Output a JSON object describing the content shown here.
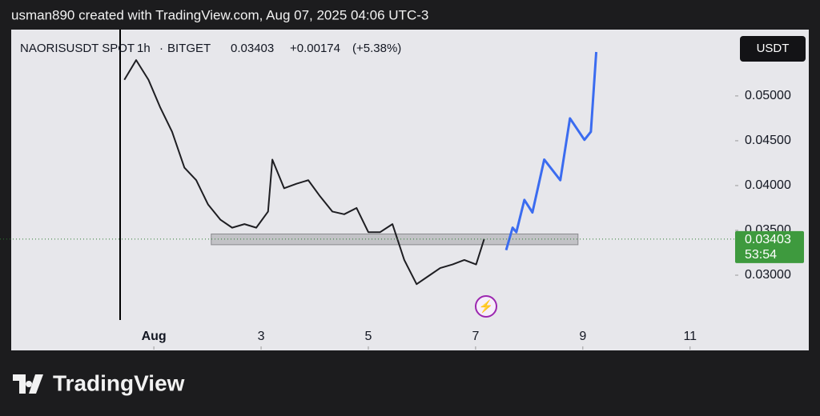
{
  "header": "usman890 created with TradingView.com, Aug 07, 2025 04:06 UTC-3",
  "chart_data": {
    "type": "line",
    "symbol": "NAORISUSDT SPOT",
    "interval": "1h",
    "exchange": "BITGET",
    "last_price": {
      "value": 0.03403,
      "label": "0.03403"
    },
    "change": {
      "value": 0.00174,
      "label": "+0.00174"
    },
    "change_pct": {
      "value": 5.38,
      "label": "(+5.38%)"
    },
    "currency": "USDT",
    "countdown": "53:54",
    "xlim": [
      -1.66,
      11.84
    ],
    "ylim": [
      0.0217,
      0.0574
    ],
    "xticks": [
      {
        "value": 1,
        "label": "Aug"
      },
      3,
      5,
      7,
      9,
      11
    ],
    "yticks": [
      {
        "value": 0.03,
        "label": "0.03000"
      },
      {
        "value": 0.035,
        "label": "0.03500"
      },
      {
        "value": 0.04,
        "label": "0.04000"
      },
      {
        "value": 0.045,
        "label": "0.04500"
      },
      {
        "value": 0.05,
        "label": "0.05000"
      }
    ],
    "zone": {
      "x": [
        2.07,
        8.91
      ],
      "y": [
        0.0334,
        0.0346
      ]
    },
    "series": [
      {
        "color": "#1e1e22",
        "x": [
          0.45,
          0.67,
          0.9,
          1.12,
          1.34,
          1.57,
          1.79,
          2.01,
          2.24,
          2.46,
          2.69,
          2.91,
          3.13,
          3.21,
          3.43,
          3.66,
          3.88,
          4.1,
          4.33,
          4.55,
          4.78,
          5.0,
          5.22,
          5.45,
          5.67,
          5.9,
          6.12,
          6.34,
          6.57,
          6.79,
          7.01,
          7.16
        ],
        "values": [
          0.0518,
          0.054,
          0.0518,
          0.0487,
          0.046,
          0.042,
          0.0406,
          0.0379,
          0.0362,
          0.0353,
          0.0357,
          0.0353,
          0.0371,
          0.0429,
          0.0397,
          0.0402,
          0.0406,
          0.0388,
          0.0371,
          0.0368,
          0.0375,
          0.0348,
          0.0348,
          0.0357,
          0.0317,
          0.029,
          0.0299,
          0.0308,
          0.0312,
          0.0317,
          0.0312,
          0.03403
        ]
      },
      {
        "color": "#3b6cf0",
        "x": [
          7.57,
          7.69,
          7.76,
          7.91,
          8.06,
          8.28,
          8.58,
          8.76,
          9.03,
          9.15,
          9.25
        ],
        "values": [
          0.0328,
          0.0353,
          0.0348,
          0.0384,
          0.037,
          0.0429,
          0.0406,
          0.0475,
          0.0451,
          0.046,
          0.0549
        ]
      }
    ]
  },
  "footer": "TradingView"
}
